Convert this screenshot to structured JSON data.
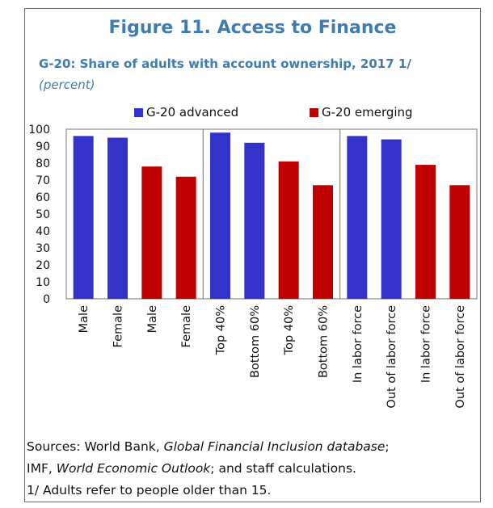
{
  "figure": {
    "title": "Figure 11. Access to Finance",
    "subtitle": "G-20: Share of adults with account ownership, 2017 1/",
    "units": "(percent)"
  },
  "colors": {
    "advanced": "#3333cc",
    "emerging": "#c00000",
    "title": "#3e7cb1"
  },
  "notes": {
    "sources_prefix": "Sources: World Bank, ",
    "sources_italic1": "Global Financial Inclusion database",
    "sources_mid": ";",
    "sources_line2_prefix": "IMF, ",
    "sources_italic2": "World Economic Outlook",
    "sources_line2_suffix": "; and staff calculations.",
    "footnote": "1/ Adults refer to people older than 15."
  },
  "chart_data": {
    "type": "bar",
    "categories": [
      "Male",
      "Female",
      "Male",
      "Female",
      "Top 40%",
      "Bottom 60%",
      "Top 40%",
      "Bottom 60%",
      "In labor force",
      "Out of labor force",
      "In labor force",
      "Out of labor force"
    ],
    "values": [
      96,
      95,
      78,
      72,
      98,
      92,
      81,
      67,
      96,
      94,
      79,
      67
    ],
    "bar_group": [
      "advanced",
      "advanced",
      "emerging",
      "emerging",
      "advanced",
      "advanced",
      "emerging",
      "emerging",
      "advanced",
      "advanced",
      "emerging",
      "emerging"
    ],
    "legend": [
      {
        "key": "advanced",
        "label": "G-20 advanced"
      },
      {
        "key": "emerging",
        "label": "G-20 emerging"
      }
    ],
    "yticks": [
      "100",
      "90",
      "80",
      "70",
      "60",
      "50",
      "40",
      "30",
      "20",
      "10",
      "0"
    ],
    "ylim": [
      0,
      100
    ],
    "panel_breaks_after": [
      4,
      8
    ],
    "legend_position": "top-center"
  }
}
